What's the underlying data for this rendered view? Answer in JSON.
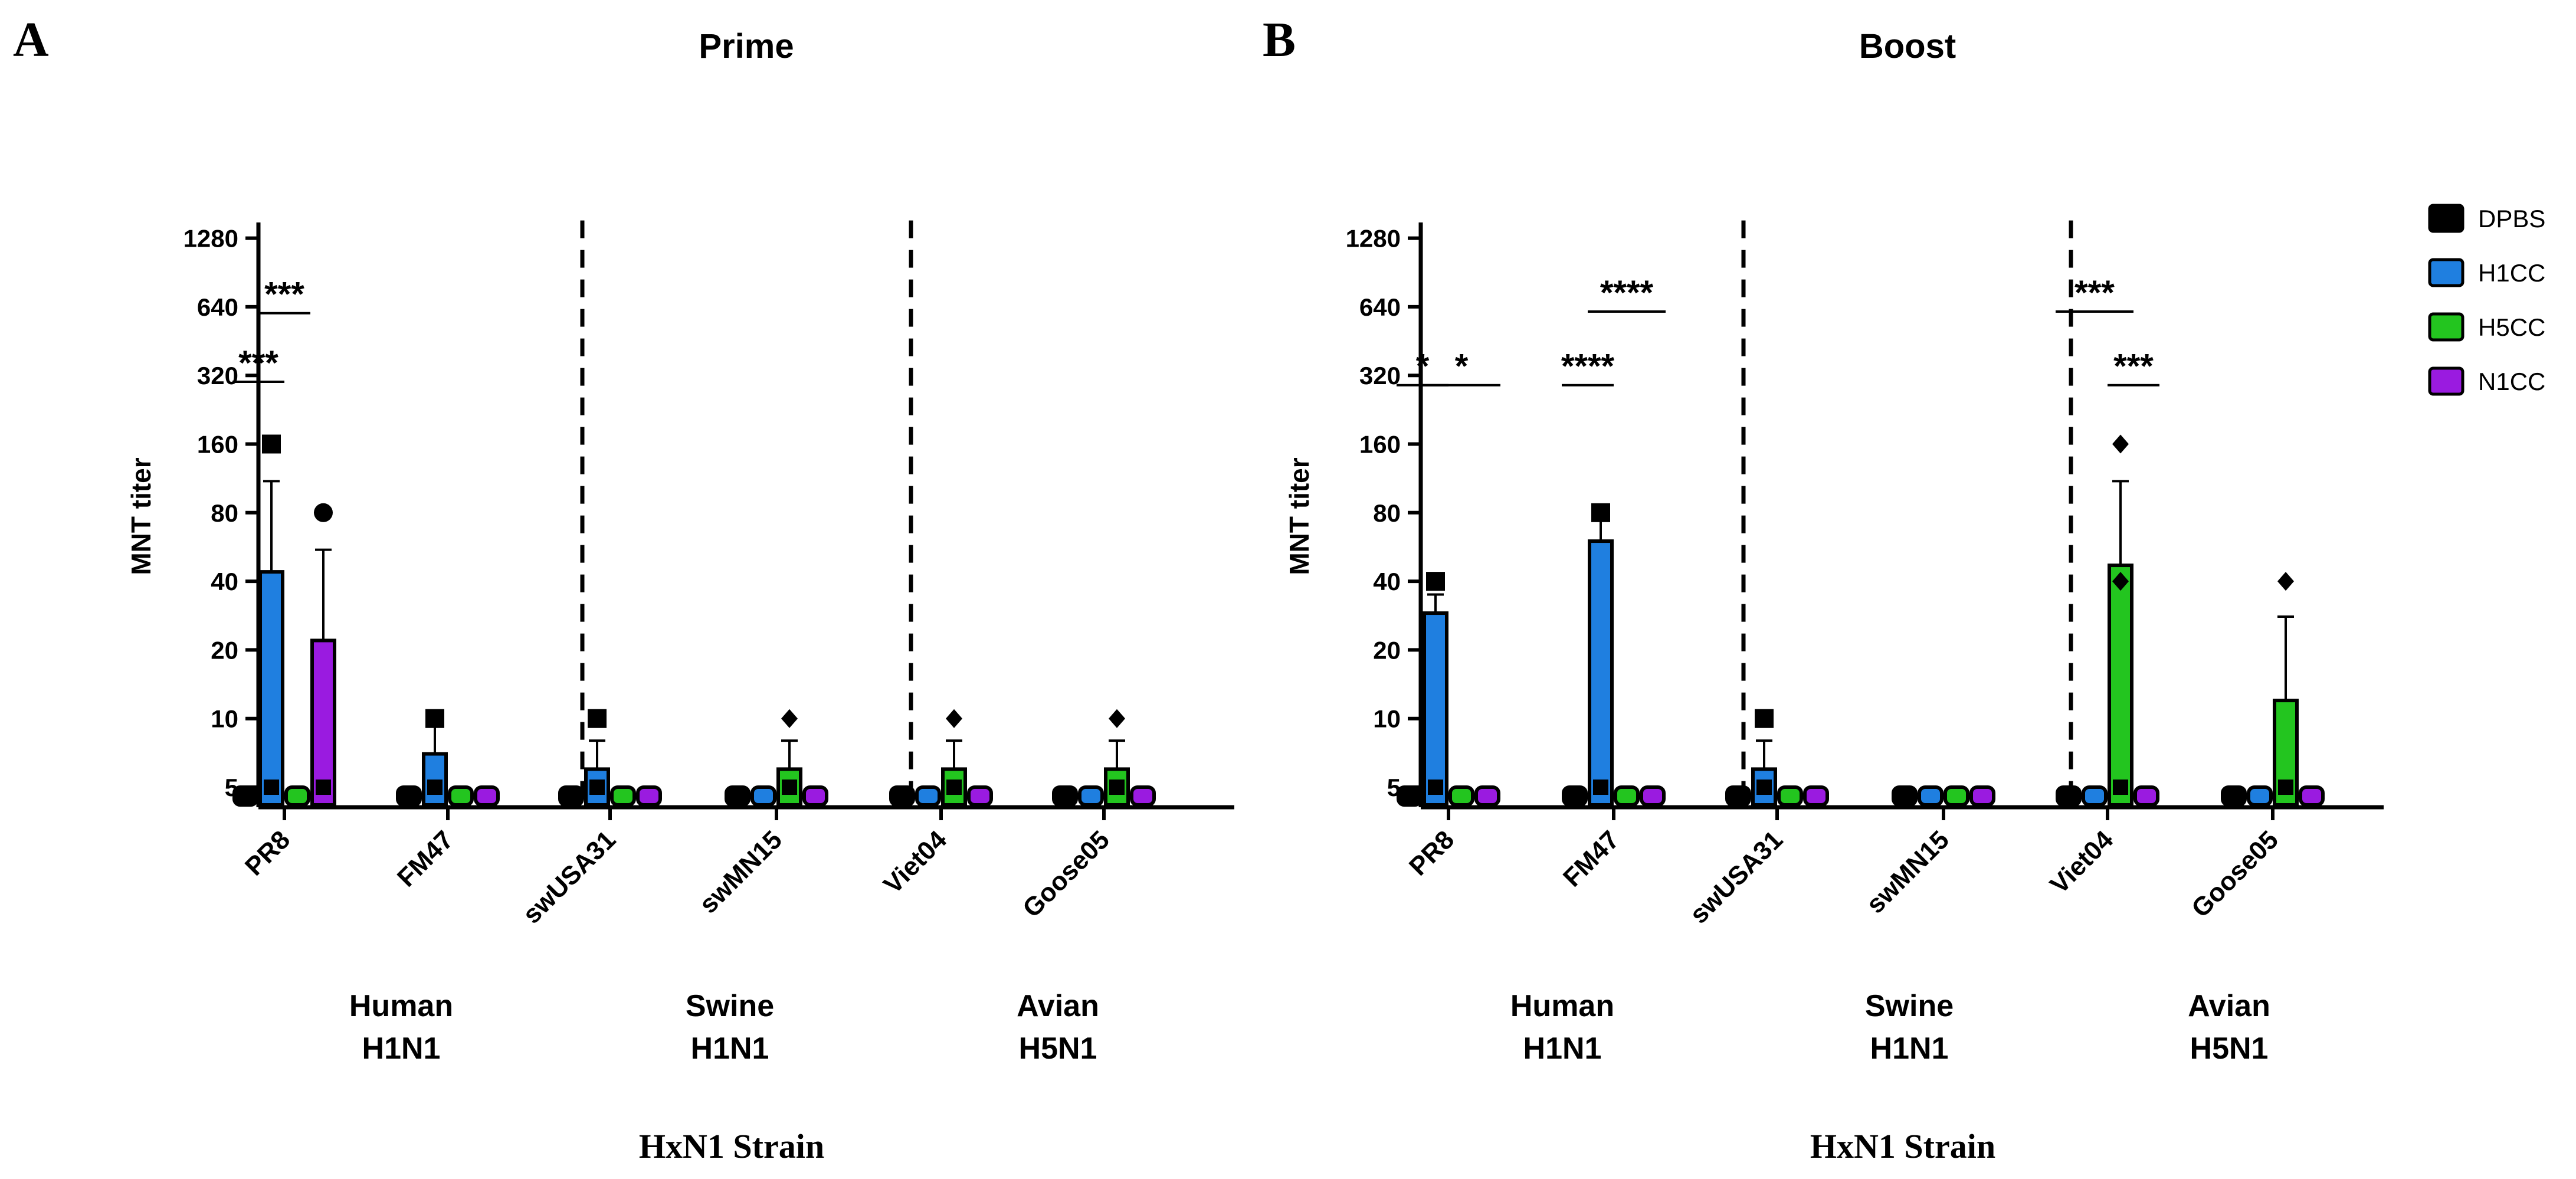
{
  "figure": {
    "panel_letters": [
      "A",
      "B"
    ],
    "xlabel": "HxN1 Strain"
  },
  "chart_data": [
    {
      "type": "bar",
      "title": "Prime",
      "ylabel": "MNT titer",
      "yscale": "log2",
      "ylim": [
        4.2,
        1500
      ],
      "yticks": [
        5,
        10,
        20,
        40,
        80,
        160,
        320,
        640,
        1280
      ],
      "categories": [
        "PR8",
        "FM47",
        "swUSA31",
        "swMN15",
        "Viet04",
        "Goose05"
      ],
      "groups": [
        {
          "label_line1": "Human",
          "label_line2": "H1N1"
        },
        {
          "label_line1": "Swine",
          "label_line2": "H1N1"
        },
        {
          "label_line1": "Avian",
          "label_line2": "H5N1"
        }
      ],
      "series": [
        {
          "name": "DPBS",
          "values": [
            5,
            5,
            5,
            5,
            5,
            5
          ],
          "error_upper": [
            null,
            null,
            null,
            null,
            null,
            null
          ]
        },
        {
          "name": "H1CC",
          "values": [
            44,
            7,
            6,
            5,
            5,
            5
          ],
          "error_upper": [
            110,
            10,
            8,
            null,
            null,
            null
          ]
        },
        {
          "name": "H5CC",
          "values": [
            5,
            5,
            5,
            6,
            6,
            6
          ],
          "error_upper": [
            null,
            null,
            null,
            8,
            8,
            8
          ]
        },
        {
          "name": "N1CC",
          "values": [
            22,
            5,
            5,
            5,
            5,
            5
          ],
          "error_upper": [
            55,
            null,
            null,
            null,
            null,
            null
          ]
        }
      ],
      "outliers": [
        {
          "category": 0,
          "series": 1,
          "value": 160,
          "marker": "square"
        },
        {
          "category": 0,
          "series": 3,
          "value": 80,
          "marker": "circle"
        },
        {
          "category": 1,
          "series": 1,
          "value": 10,
          "marker": "square"
        },
        {
          "category": 2,
          "series": 1,
          "value": 10,
          "marker": "square"
        },
        {
          "category": 3,
          "series": 2,
          "value": 10,
          "marker": "diamond"
        },
        {
          "category": 4,
          "series": 2,
          "value": 10,
          "marker": "diamond"
        },
        {
          "category": 5,
          "series": 2,
          "value": 10,
          "marker": "diamond"
        }
      ],
      "significance": [
        {
          "text": "***",
          "category": 0,
          "from_series": 0,
          "to_series": 1,
          "y": 300
        },
        {
          "text": "***",
          "category": 0,
          "from_series": 1,
          "to_series": 2,
          "y": 600
        }
      ]
    },
    {
      "type": "bar",
      "title": "Boost",
      "ylabel": "MNT titer",
      "yscale": "log2",
      "ylim": [
        4.2,
        1500
      ],
      "yticks": [
        5,
        10,
        20,
        40,
        80,
        160,
        320,
        640,
        1280
      ],
      "categories": [
        "PR8",
        "FM47",
        "swUSA31",
        "swMN15",
        "Viet04",
        "Goose05"
      ],
      "groups": [
        {
          "label_line1": "Human",
          "label_line2": "H1N1"
        },
        {
          "label_line1": "Swine",
          "label_line2": "H1N1"
        },
        {
          "label_line1": "Avian",
          "label_line2": "H5N1"
        }
      ],
      "series": [
        {
          "name": "DPBS",
          "values": [
            5,
            5,
            5,
            5,
            5,
            5
          ],
          "error_upper": [
            null,
            null,
            null,
            null,
            null,
            null
          ]
        },
        {
          "name": "H1CC",
          "values": [
            29,
            60,
            6,
            5,
            5,
            5
          ],
          "error_upper": [
            35,
            84,
            8,
            null,
            null,
            null
          ]
        },
        {
          "name": "H5CC",
          "values": [
            5,
            5,
            5,
            5,
            47,
            12
          ],
          "error_upper": [
            null,
            null,
            null,
            null,
            110,
            28
          ]
        },
        {
          "name": "N1CC",
          "values": [
            5,
            5,
            5,
            5,
            5,
            5
          ],
          "error_upper": [
            null,
            null,
            null,
            null,
            null,
            null
          ]
        }
      ],
      "outliers": [
        {
          "category": 0,
          "series": 1,
          "value": 40,
          "marker": "square"
        },
        {
          "category": 1,
          "series": 1,
          "value": 80,
          "marker": "square"
        },
        {
          "category": 2,
          "series": 1,
          "value": 10,
          "marker": "square"
        },
        {
          "category": 4,
          "series": 2,
          "value": 160,
          "marker": "diamond"
        },
        {
          "category": 4,
          "series": 2,
          "value": 40,
          "marker": "diamond"
        },
        {
          "category": 5,
          "series": 2,
          "value": 40,
          "marker": "diamond"
        }
      ],
      "significance": [
        {
          "text": "*",
          "category": 0,
          "from_series": 0,
          "to_series": 1,
          "y": 290
        },
        {
          "text": "*",
          "category": 0,
          "from_series": 1,
          "to_series": 3,
          "y": 290
        },
        {
          "text": "****",
          "category": 1,
          "from_series": 0,
          "to_series": 1,
          "y": 290
        },
        {
          "text": "****",
          "category": 1,
          "from_series": 1,
          "to_series": 3,
          "y": 610
        },
        {
          "text": "***",
          "category": 4,
          "from_series": 0,
          "to_series": 2,
          "y": 610
        },
        {
          "text": "***",
          "category": 4,
          "from_series": 2,
          "to_series": 3,
          "y": 290
        }
      ]
    }
  ],
  "legend": {
    "entries": [
      {
        "name": "DPBS",
        "color": "#000000"
      },
      {
        "name": "H1CC",
        "color": "#1f7fe0"
      },
      {
        "name": "H5CC",
        "color": "#23c51f"
      },
      {
        "name": "N1CC",
        "color": "#9a1be0"
      }
    ],
    "position": "top-right"
  },
  "colors": {
    "DPBS": "#000000",
    "H1CC": "#1f7fe0",
    "H5CC": "#23c51f",
    "N1CC": "#9a1be0"
  }
}
